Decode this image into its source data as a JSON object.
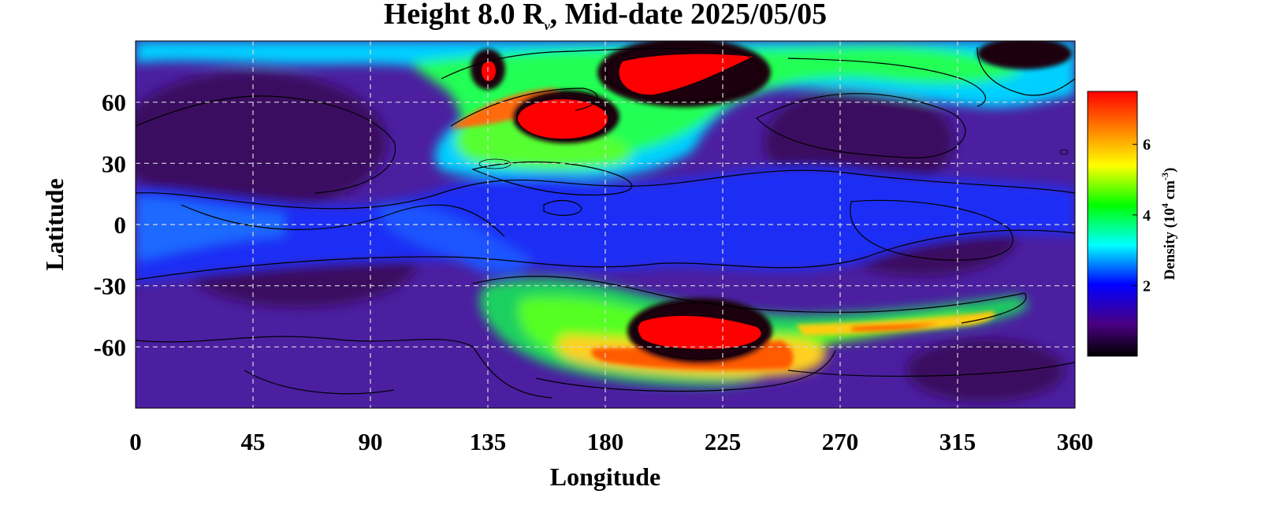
{
  "chart_data": {
    "type": "heatmap",
    "title": {
      "prefix": "Height 8.0 R",
      "subscript": "ν",
      "suffix": ", Mid-date 2025/05/05"
    },
    "xlabel": "Longitude",
    "ylabel": "Latitude",
    "xlim": [
      0,
      360
    ],
    "ylim": [
      -90,
      90
    ],
    "x_ticks": [
      0,
      45,
      90,
      135,
      180,
      225,
      270,
      315,
      360
    ],
    "y_ticks": [
      60,
      30,
      0,
      -30,
      -60
    ],
    "grid": true,
    "colorbar": {
      "label_main": "Density (10",
      "label_exp1": "4",
      "label_mid": " cm",
      "label_exp2": "-3",
      "label_end": ")",
      "range": [
        0,
        7.5
      ],
      "ticks": [
        2,
        4,
        6
      ],
      "colors": [
        "#000000",
        "#4b0082",
        "#0000ff",
        "#00ffff",
        "#00ff00",
        "#ffff00",
        "#ff7f00",
        "#ff0000"
      ]
    },
    "features": [
      {
        "lon": 195,
        "lat": 78,
        "density": 7.5,
        "region": "north peak"
      },
      {
        "lon": 162,
        "lat": 50,
        "density": 7.5,
        "region": "north peak"
      },
      {
        "lon": 135,
        "lat": 75,
        "density": 7.5,
        "region": "north small peak"
      },
      {
        "lon": 140,
        "lat": 55,
        "density": 6.5,
        "region": "north arm"
      },
      {
        "lon": 210,
        "lat": -57,
        "density": 7.5,
        "region": "south peak"
      },
      {
        "lon": 235,
        "lat": -65,
        "density": 6.8,
        "region": "south band"
      },
      {
        "lon": 290,
        "lat": -50,
        "density": 5.5,
        "region": "south arm"
      },
      {
        "lon": 280,
        "lat": 82,
        "density": 4.5,
        "region": "north band"
      },
      {
        "lon": 170,
        "lat": 9,
        "density": 3.0,
        "region": "equatorial"
      }
    ]
  }
}
